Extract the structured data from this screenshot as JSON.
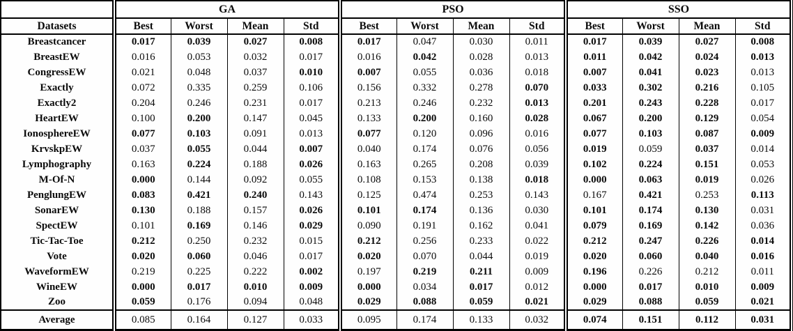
{
  "table": {
    "datasets_header": "Datasets",
    "groups": [
      {
        "label": "GA"
      },
      {
        "label": "PSO"
      },
      {
        "label": "SSO"
      }
    ],
    "col_headers": [
      "Best",
      "Worst",
      "Mean",
      "Std"
    ],
    "rows": [
      {
        "dataset": "Breastcancer",
        "cells": [
          [
            "0.017",
            1
          ],
          [
            "0.039",
            1
          ],
          [
            "0.027",
            1
          ],
          [
            "0.008",
            1
          ],
          [
            "0.017",
            1
          ],
          [
            "0.047",
            0
          ],
          [
            "0.030",
            0
          ],
          [
            "0.011",
            0
          ],
          [
            "0.017",
            1
          ],
          [
            "0.039",
            1
          ],
          [
            "0.027",
            1
          ],
          [
            "0.008",
            1
          ]
        ]
      },
      {
        "dataset": "BreastEW",
        "cells": [
          [
            "0.016",
            0
          ],
          [
            "0.053",
            0
          ],
          [
            "0.032",
            0
          ],
          [
            "0.017",
            0
          ],
          [
            "0.016",
            0
          ],
          [
            "0.042",
            1
          ],
          [
            "0.028",
            0
          ],
          [
            "0.013",
            0
          ],
          [
            "0.011",
            1
          ],
          [
            "0.042",
            1
          ],
          [
            "0.024",
            1
          ],
          [
            "0.013",
            1
          ]
        ]
      },
      {
        "dataset": "CongressEW",
        "cells": [
          [
            "0.021",
            0
          ],
          [
            "0.048",
            0
          ],
          [
            "0.037",
            0
          ],
          [
            "0.010",
            1
          ],
          [
            "0.007",
            1
          ],
          [
            "0.055",
            0
          ],
          [
            "0.036",
            0
          ],
          [
            "0.018",
            0
          ],
          [
            "0.007",
            1
          ],
          [
            "0.041",
            1
          ],
          [
            "0.023",
            1
          ],
          [
            "0.013",
            0
          ]
        ]
      },
      {
        "dataset": "Exactly",
        "cells": [
          [
            "0.072",
            0
          ],
          [
            "0.335",
            0
          ],
          [
            "0.259",
            0
          ],
          [
            "0.106",
            0
          ],
          [
            "0.156",
            0
          ],
          [
            "0.332",
            0
          ],
          [
            "0.278",
            0
          ],
          [
            "0.070",
            1
          ],
          [
            "0.033",
            1
          ],
          [
            "0.302",
            1
          ],
          [
            "0.216",
            1
          ],
          [
            "0.105",
            0
          ]
        ]
      },
      {
        "dataset": "Exactly2",
        "cells": [
          [
            "0.204",
            0
          ],
          [
            "0.246",
            0
          ],
          [
            "0.231",
            0
          ],
          [
            "0.017",
            0
          ],
          [
            "0.213",
            0
          ],
          [
            "0.246",
            0
          ],
          [
            "0.232",
            0
          ],
          [
            "0.013",
            1
          ],
          [
            "0.201",
            1
          ],
          [
            "0.243",
            1
          ],
          [
            "0.228",
            1
          ],
          [
            "0.017",
            0
          ]
        ]
      },
      {
        "dataset": "HeartEW",
        "cells": [
          [
            "0.100",
            0
          ],
          [
            "0.200",
            1
          ],
          [
            "0.147",
            0
          ],
          [
            "0.045",
            0
          ],
          [
            "0.133",
            0
          ],
          [
            "0.200",
            1
          ],
          [
            "0.160",
            0
          ],
          [
            "0.028",
            1
          ],
          [
            "0.067",
            1
          ],
          [
            "0.200",
            1
          ],
          [
            "0.129",
            1
          ],
          [
            "0.054",
            0
          ]
        ]
      },
      {
        "dataset": "IonosphereEW",
        "cells": [
          [
            "0.077",
            1
          ],
          [
            "0.103",
            1
          ],
          [
            "0.091",
            0
          ],
          [
            "0.013",
            0
          ],
          [
            "0.077",
            1
          ],
          [
            "0.120",
            0
          ],
          [
            "0.096",
            0
          ],
          [
            "0.016",
            0
          ],
          [
            "0.077",
            1
          ],
          [
            "0.103",
            1
          ],
          [
            "0.087",
            1
          ],
          [
            "0.009",
            1
          ]
        ]
      },
      {
        "dataset": "KrvskpEW",
        "cells": [
          [
            "0.037",
            0
          ],
          [
            "0.055",
            1
          ],
          [
            "0.044",
            0
          ],
          [
            "0.007",
            1
          ],
          [
            "0.040",
            0
          ],
          [
            "0.174",
            0
          ],
          [
            "0.076",
            0
          ],
          [
            "0.056",
            0
          ],
          [
            "0.019",
            1
          ],
          [
            "0.059",
            0
          ],
          [
            "0.037",
            1
          ],
          [
            "0.014",
            0
          ]
        ]
      },
      {
        "dataset": "Lymphography",
        "cells": [
          [
            "0.163",
            0
          ],
          [
            "0.224",
            1
          ],
          [
            "0.188",
            0
          ],
          [
            "0.026",
            1
          ],
          [
            "0.163",
            0
          ],
          [
            "0.265",
            0
          ],
          [
            "0.208",
            0
          ],
          [
            "0.039",
            0
          ],
          [
            "0.102",
            1
          ],
          [
            "0.224",
            1
          ],
          [
            "0.151",
            1
          ],
          [
            "0.053",
            0
          ]
        ]
      },
      {
        "dataset": "M-Of-N",
        "cells": [
          [
            "0.000",
            1
          ],
          [
            "0.144",
            0
          ],
          [
            "0.092",
            0
          ],
          [
            "0.055",
            0
          ],
          [
            "0.108",
            0
          ],
          [
            "0.153",
            0
          ],
          [
            "0.138",
            0
          ],
          [
            "0.018",
            1
          ],
          [
            "0.000",
            1
          ],
          [
            "0.063",
            1
          ],
          [
            "0.019",
            1
          ],
          [
            "0.026",
            0
          ]
        ]
      },
      {
        "dataset": "PenglungEW",
        "cells": [
          [
            "0.083",
            1
          ],
          [
            "0.421",
            1
          ],
          [
            "0.240",
            1
          ],
          [
            "0.143",
            0
          ],
          [
            "0.125",
            0
          ],
          [
            "0.474",
            0
          ],
          [
            "0.253",
            0
          ],
          [
            "0.143",
            0
          ],
          [
            "0.167",
            0
          ],
          [
            "0.421",
            1
          ],
          [
            "0.253",
            0
          ],
          [
            "0.113",
            1
          ]
        ]
      },
      {
        "dataset": "SonarEW",
        "cells": [
          [
            "0.130",
            1
          ],
          [
            "0.188",
            0
          ],
          [
            "0.157",
            0
          ],
          [
            "0.026",
            1
          ],
          [
            "0.101",
            1
          ],
          [
            "0.174",
            1
          ],
          [
            "0.136",
            0
          ],
          [
            "0.030",
            0
          ],
          [
            "0.101",
            1
          ],
          [
            "0.174",
            1
          ],
          [
            "0.130",
            1
          ],
          [
            "0.031",
            0
          ]
        ]
      },
      {
        "dataset": "SpectEW",
        "cells": [
          [
            "0.101",
            0
          ],
          [
            "0.169",
            1
          ],
          [
            "0.146",
            0
          ],
          [
            "0.029",
            1
          ],
          [
            "0.090",
            0
          ],
          [
            "0.191",
            0
          ],
          [
            "0.162",
            0
          ],
          [
            "0.041",
            0
          ],
          [
            "0.079",
            1
          ],
          [
            "0.169",
            1
          ],
          [
            "0.142",
            1
          ],
          [
            "0.036",
            0
          ]
        ]
      },
      {
        "dataset": "Tic-Tac-Toe",
        "cells": [
          [
            "0.212",
            1
          ],
          [
            "0.250",
            0
          ],
          [
            "0.232",
            0
          ],
          [
            "0.015",
            0
          ],
          [
            "0.212",
            1
          ],
          [
            "0.256",
            0
          ],
          [
            "0.233",
            0
          ],
          [
            "0.022",
            0
          ],
          [
            "0.212",
            1
          ],
          [
            "0.247",
            1
          ],
          [
            "0.226",
            1
          ],
          [
            "0.014",
            1
          ]
        ]
      },
      {
        "dataset": "Vote",
        "cells": [
          [
            "0.020",
            1
          ],
          [
            "0.060",
            1
          ],
          [
            "0.046",
            0
          ],
          [
            "0.017",
            0
          ],
          [
            "0.020",
            1
          ],
          [
            "0.070",
            0
          ],
          [
            "0.044",
            0
          ],
          [
            "0.019",
            0
          ],
          [
            "0.020",
            1
          ],
          [
            "0.060",
            1
          ],
          [
            "0.040",
            1
          ],
          [
            "0.016",
            1
          ]
        ]
      },
      {
        "dataset": "WaveformEW",
        "cells": [
          [
            "0.219",
            0
          ],
          [
            "0.225",
            0
          ],
          [
            "0.222",
            0
          ],
          [
            "0.002",
            1
          ],
          [
            "0.197",
            0
          ],
          [
            "0.219",
            1
          ],
          [
            "0.211",
            1
          ],
          [
            "0.009",
            0
          ],
          [
            "0.196",
            1
          ],
          [
            "0.226",
            0
          ],
          [
            "0.212",
            0
          ],
          [
            "0.011",
            0
          ]
        ]
      },
      {
        "dataset": "WineEW",
        "cells": [
          [
            "0.000",
            1
          ],
          [
            "0.017",
            1
          ],
          [
            "0.010",
            1
          ],
          [
            "0.009",
            1
          ],
          [
            "0.000",
            1
          ],
          [
            "0.034",
            0
          ],
          [
            "0.017",
            1
          ],
          [
            "0.012",
            0
          ],
          [
            "0.000",
            1
          ],
          [
            "0.017",
            1
          ],
          [
            "0.010",
            1
          ],
          [
            "0.009",
            1
          ]
        ]
      },
      {
        "dataset": "Zoo",
        "cells": [
          [
            "0.059",
            1
          ],
          [
            "0.176",
            0
          ],
          [
            "0.094",
            0
          ],
          [
            "0.048",
            0
          ],
          [
            "0.029",
            1
          ],
          [
            "0.088",
            1
          ],
          [
            "0.059",
            1
          ],
          [
            "0.021",
            1
          ],
          [
            "0.029",
            1
          ],
          [
            "0.088",
            1
          ],
          [
            "0.059",
            1
          ],
          [
            "0.021",
            1
          ]
        ]
      }
    ],
    "average": {
      "label": "Average",
      "cells": [
        [
          "0.085",
          0
        ],
        [
          "0.164",
          0
        ],
        [
          "0.127",
          0
        ],
        [
          "0.033",
          0
        ],
        [
          "0.095",
          0
        ],
        [
          "0.174",
          0
        ],
        [
          "0.133",
          0
        ],
        [
          "0.032",
          0
        ],
        [
          "0.074",
          1
        ],
        [
          "0.151",
          1
        ],
        [
          "0.112",
          1
        ],
        [
          "0.031",
          1
        ]
      ]
    }
  }
}
